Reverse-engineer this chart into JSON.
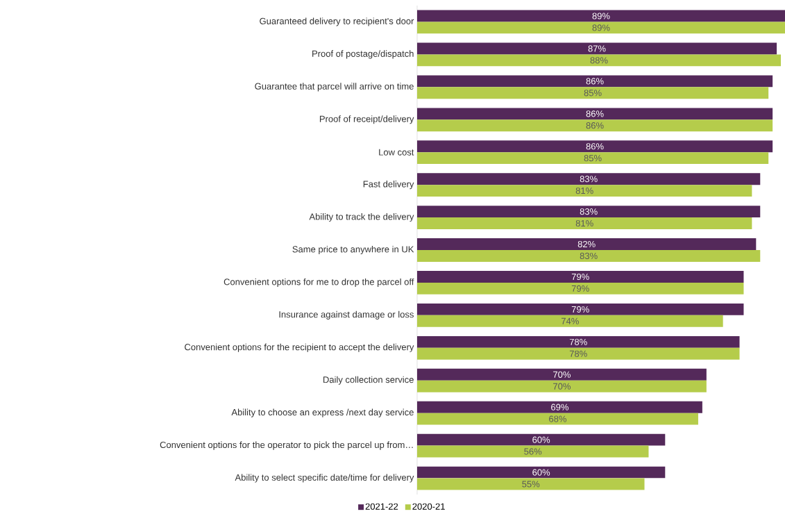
{
  "chart_data": {
    "type": "bar",
    "orientation": "horizontal",
    "legend": "bottom",
    "xlim": [
      0,
      89
    ],
    "categories": [
      "Guaranteed delivery to recipient's door",
      "Proof of postage/dispatch",
      "Guarantee that parcel will arrive on time",
      "Proof of receipt/delivery",
      "Low cost",
      "Fast  delivery",
      "Ability to track the delivery",
      "Same price to anywhere in UK",
      "Convenient options for me to drop the parcel off",
      "Insurance against damage or loss",
      "Convenient options for the recipient to accept the delivery",
      "Daily collection service",
      "Ability to choose an express /next day service",
      "Convenient options for the operator to pick the parcel up from…",
      "Ability to select specific date/time for delivery"
    ],
    "series": [
      {
        "name": "2021-22",
        "color": "#54295a",
        "values": [
          89,
          87,
          86,
          86,
          86,
          83,
          83,
          82,
          79,
          79,
          78,
          70,
          69,
          60,
          60
        ],
        "value_labels": [
          "89%",
          "87%",
          "86%",
          "86%",
          "86%",
          "83%",
          "83%",
          "82%",
          "79%",
          "79%",
          "78%",
          "70%",
          "69%",
          "60%",
          "60%"
        ]
      },
      {
        "name": "2020-21",
        "color": "#b5cc4b",
        "values": [
          89,
          88,
          85,
          86,
          85,
          81,
          81,
          83,
          79,
          74,
          78,
          70,
          68,
          56,
          55
        ],
        "value_labels": [
          "89%",
          "88%",
          "85%",
          "86%",
          "85%",
          "81%",
          "81%",
          "83%",
          "79%",
          "74%",
          "78%",
          "70%",
          "68%",
          "56%",
          "55%"
        ]
      }
    ]
  }
}
